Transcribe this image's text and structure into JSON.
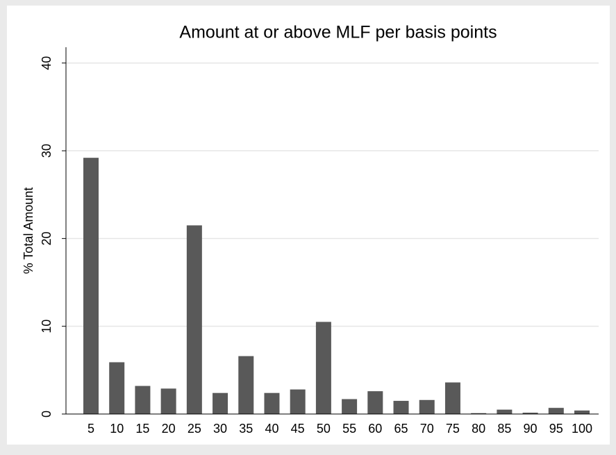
{
  "chart_data": {
    "type": "bar",
    "title": "Amount at or above MLF per basis points",
    "y_label": "% Total Amount",
    "categories": [
      "5",
      "10",
      "15",
      "20",
      "25",
      "30",
      "35",
      "40",
      "45",
      "50",
      "55",
      "60",
      "65",
      "70",
      "75",
      "80",
      "85",
      "90",
      "95",
      "100"
    ],
    "values": [
      29.2,
      5.9,
      3.2,
      2.9,
      21.5,
      2.4,
      6.6,
      2.4,
      2.8,
      10.5,
      1.7,
      2.6,
      1.5,
      1.6,
      3.6,
      0.1,
      0.5,
      0.15,
      0.7,
      0.4
    ],
    "color": "#595959",
    "ylim": [
      0,
      41.8
    ],
    "yticks": [
      0,
      10,
      20,
      30,
      40
    ],
    "grid": true
  }
}
